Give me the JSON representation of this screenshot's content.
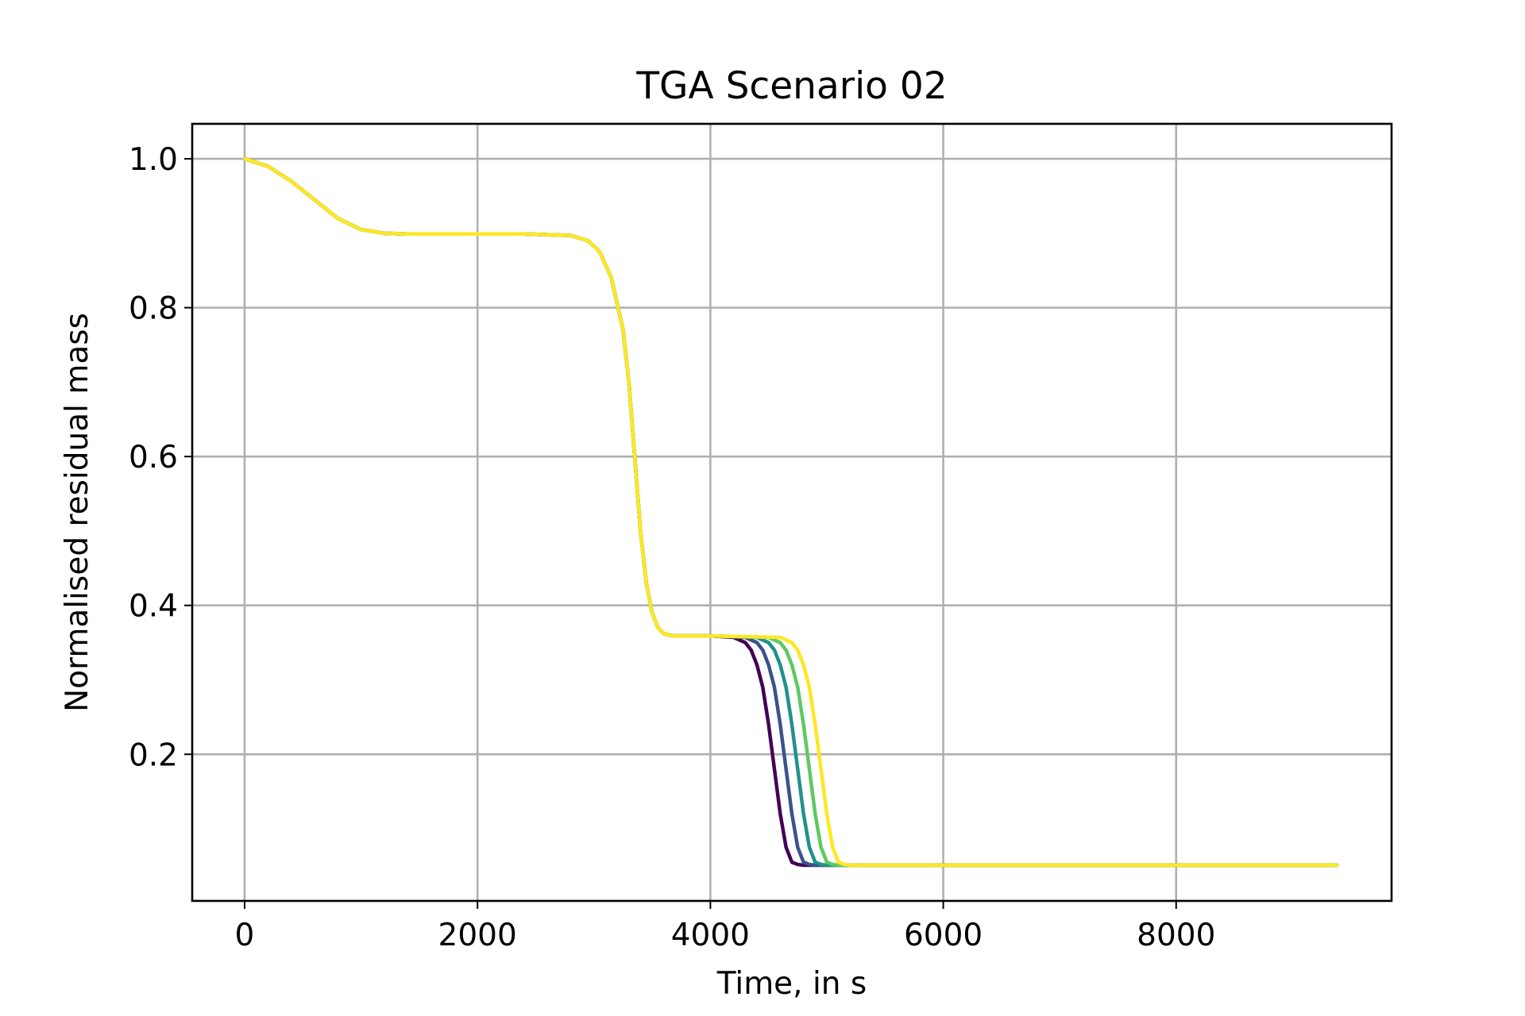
{
  "chart_data": {
    "type": "line",
    "title": "TGA Scenario 02",
    "xlabel": "Time, in s",
    "ylabel": "Normalised residual mass",
    "xlim": [
      -450,
      9850
    ],
    "ylim": [
      0.003,
      1.047
    ],
    "xticks": [
      0,
      2000,
      4000,
      6000,
      8000
    ],
    "xtick_labels": [
      "0",
      "2000",
      "4000",
      "6000",
      "8000"
    ],
    "yticks": [
      0.2,
      0.4,
      0.6,
      0.8,
      1.0
    ],
    "ytick_labels": [
      "0.2",
      "0.4",
      "0.6",
      "0.8",
      "1.0"
    ],
    "grid": true,
    "legend": "none",
    "series": [
      {
        "color": "#440154",
        "x": [
          0,
          200,
          400,
          600,
          800,
          1000,
          1200,
          1400,
          1600,
          2000,
          2400,
          2800,
          2950,
          3050,
          3150,
          3250,
          3300,
          3350,
          3400,
          3450,
          3500,
          3550,
          3600,
          3650,
          3700,
          3800,
          4000,
          4200,
          4300,
          4350,
          4400,
          4450,
          4500,
          4550,
          4600,
          4650,
          4700,
          4750,
          4800,
          4900,
          5200,
          6000,
          7000,
          8000,
          9000,
          9380
        ],
        "y": [
          1.0,
          0.99,
          0.97,
          0.945,
          0.92,
          0.905,
          0.9,
          0.899,
          0.899,
          0.899,
          0.899,
          0.897,
          0.89,
          0.875,
          0.84,
          0.77,
          0.7,
          0.6,
          0.5,
          0.43,
          0.39,
          0.37,
          0.362,
          0.36,
          0.359,
          0.359,
          0.359,
          0.357,
          0.35,
          0.34,
          0.32,
          0.29,
          0.24,
          0.18,
          0.12,
          0.075,
          0.055,
          0.052,
          0.051,
          0.051,
          0.051,
          0.051,
          0.051,
          0.051,
          0.051,
          0.051
        ]
      },
      {
        "color": "#3b528b",
        "x": [
          0,
          200,
          400,
          600,
          800,
          1000,
          1200,
          1400,
          1600,
          2000,
          2400,
          2800,
          2950,
          3050,
          3150,
          3250,
          3300,
          3350,
          3400,
          3450,
          3500,
          3550,
          3600,
          3650,
          3700,
          3800,
          4000,
          4300,
          4400,
          4450,
          4500,
          4550,
          4600,
          4650,
          4700,
          4750,
          4800,
          4850,
          4900,
          5000,
          5200,
          6000,
          7000,
          8000,
          9000,
          9380
        ],
        "y": [
          1.0,
          0.99,
          0.97,
          0.945,
          0.92,
          0.905,
          0.9,
          0.899,
          0.899,
          0.899,
          0.899,
          0.897,
          0.89,
          0.875,
          0.84,
          0.77,
          0.7,
          0.6,
          0.5,
          0.43,
          0.39,
          0.37,
          0.362,
          0.36,
          0.359,
          0.359,
          0.359,
          0.357,
          0.35,
          0.34,
          0.32,
          0.29,
          0.24,
          0.18,
          0.12,
          0.075,
          0.055,
          0.052,
          0.051,
          0.051,
          0.051,
          0.051,
          0.051,
          0.051,
          0.051,
          0.051
        ]
      },
      {
        "color": "#21918c",
        "x": [
          0,
          200,
          400,
          600,
          800,
          1000,
          1200,
          1400,
          1600,
          2000,
          2400,
          2800,
          2950,
          3050,
          3150,
          3250,
          3300,
          3350,
          3400,
          3450,
          3500,
          3550,
          3600,
          3650,
          3700,
          3800,
          4000,
          4400,
          4500,
          4550,
          4600,
          4650,
          4700,
          4750,
          4800,
          4850,
          4900,
          4950,
          5000,
          5100,
          5200,
          6000,
          7000,
          8000,
          9000,
          9380
        ],
        "y": [
          1.0,
          0.99,
          0.97,
          0.945,
          0.92,
          0.905,
          0.9,
          0.899,
          0.899,
          0.899,
          0.899,
          0.897,
          0.89,
          0.875,
          0.84,
          0.77,
          0.7,
          0.6,
          0.5,
          0.43,
          0.39,
          0.37,
          0.362,
          0.36,
          0.359,
          0.359,
          0.359,
          0.357,
          0.35,
          0.34,
          0.32,
          0.29,
          0.24,
          0.18,
          0.12,
          0.075,
          0.055,
          0.052,
          0.051,
          0.051,
          0.051,
          0.051,
          0.051,
          0.051,
          0.051,
          0.051
        ]
      },
      {
        "color": "#5ec962",
        "x": [
          0,
          200,
          400,
          600,
          800,
          1000,
          1200,
          1400,
          1600,
          2000,
          2400,
          2800,
          2950,
          3050,
          3150,
          3250,
          3300,
          3350,
          3400,
          3450,
          3500,
          3550,
          3600,
          3650,
          3700,
          3800,
          4000,
          4500,
          4600,
          4650,
          4700,
          4750,
          4800,
          4850,
          4900,
          4950,
          5000,
          5050,
          5100,
          5200,
          5300,
          6000,
          7000,
          8000,
          9000,
          9380
        ],
        "y": [
          1.0,
          0.99,
          0.97,
          0.945,
          0.92,
          0.905,
          0.9,
          0.899,
          0.899,
          0.899,
          0.899,
          0.897,
          0.89,
          0.875,
          0.84,
          0.77,
          0.7,
          0.6,
          0.5,
          0.43,
          0.39,
          0.37,
          0.362,
          0.36,
          0.359,
          0.359,
          0.359,
          0.357,
          0.35,
          0.34,
          0.32,
          0.29,
          0.24,
          0.18,
          0.12,
          0.075,
          0.055,
          0.052,
          0.051,
          0.051,
          0.051,
          0.051,
          0.051,
          0.051,
          0.051,
          0.051
        ]
      },
      {
        "color": "#fde725",
        "x": [
          0,
          200,
          400,
          600,
          800,
          1000,
          1200,
          1400,
          1600,
          2000,
          2400,
          2800,
          2950,
          3050,
          3150,
          3250,
          3300,
          3350,
          3400,
          3450,
          3500,
          3550,
          3600,
          3650,
          3700,
          3800,
          4000,
          4600,
          4700,
          4750,
          4800,
          4850,
          4900,
          4950,
          5000,
          5050,
          5100,
          5150,
          5200,
          5300,
          5400,
          6000,
          7000,
          8000,
          9000,
          9380
        ],
        "y": [
          1.0,
          0.99,
          0.97,
          0.945,
          0.92,
          0.905,
          0.9,
          0.899,
          0.899,
          0.899,
          0.899,
          0.897,
          0.89,
          0.875,
          0.84,
          0.77,
          0.7,
          0.6,
          0.5,
          0.43,
          0.39,
          0.37,
          0.362,
          0.36,
          0.359,
          0.359,
          0.359,
          0.357,
          0.35,
          0.34,
          0.32,
          0.29,
          0.24,
          0.18,
          0.12,
          0.075,
          0.055,
          0.052,
          0.051,
          0.051,
          0.051,
          0.051,
          0.051,
          0.051,
          0.051,
          0.051
        ]
      }
    ]
  }
}
